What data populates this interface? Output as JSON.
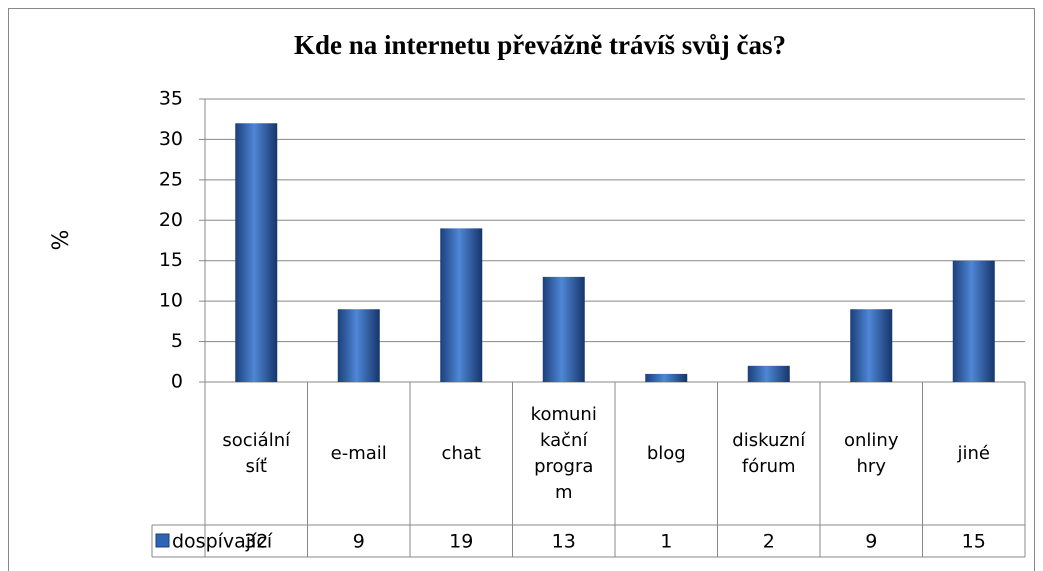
{
  "chart_data": {
    "type": "bar",
    "title": "Kde na internetu převážně trávíš svůj čas?",
    "y_label": "%",
    "categories": [
      "sociální síť",
      "e-mail",
      "chat",
      "komunikační program",
      "blog",
      "diskuzní fórum",
      "onliny hry",
      "jiné"
    ],
    "series": [
      {
        "name": "dospívající",
        "color": "#2e64b4",
        "values": [
          32,
          9,
          19,
          13,
          1,
          2,
          9,
          15
        ]
      }
    ],
    "ylim": [
      0,
      35
    ],
    "yticks": [
      0,
      5,
      10,
      15,
      20,
      25,
      30,
      35
    ],
    "grid": true,
    "data_table": true
  }
}
